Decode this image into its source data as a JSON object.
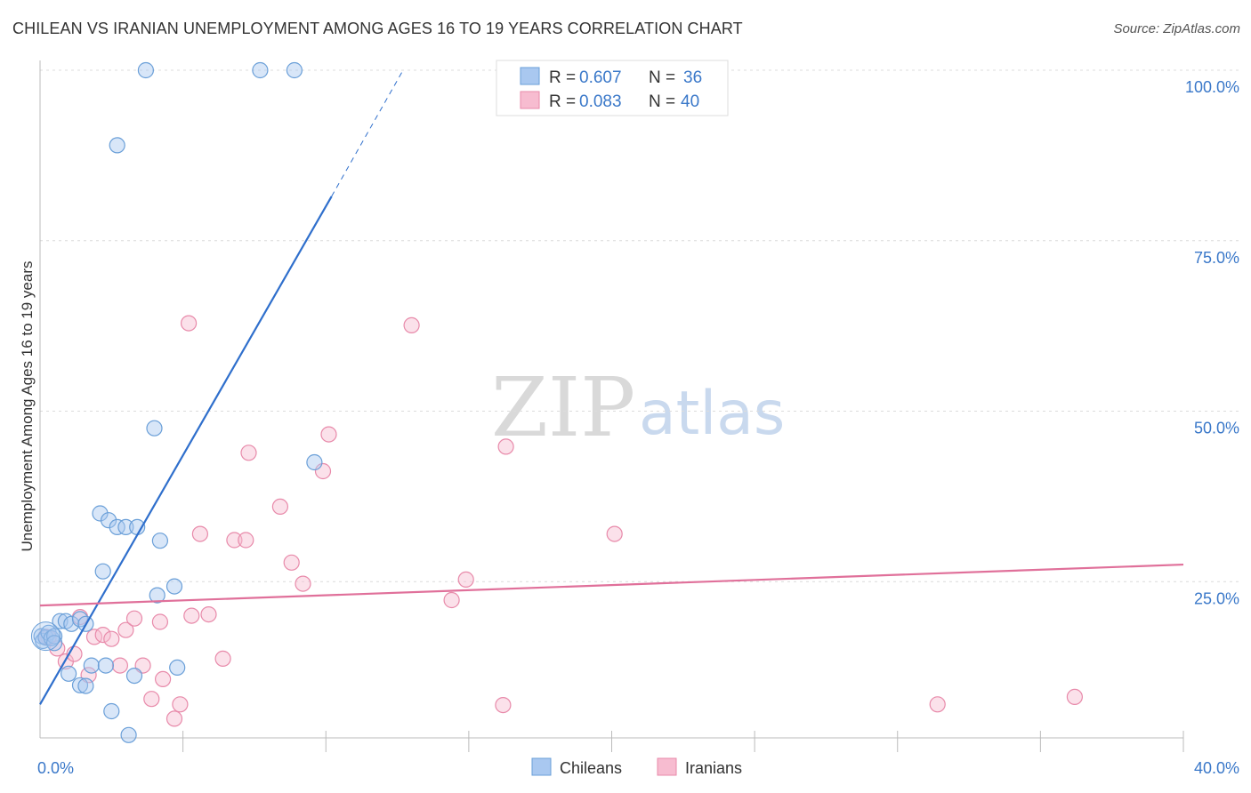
{
  "header": {
    "title": "CHILEAN VS IRANIAN UNEMPLOYMENT AMONG AGES 16 TO 19 YEARS CORRELATION CHART",
    "source": "Source: ZipAtlas.com"
  },
  "watermark": {
    "zip": "ZIP",
    "atlas": "atlas"
  },
  "colors": {
    "chileans_fill": "#a9c8f0",
    "chileans_stroke": "#6a9fd8",
    "chileans_line": "#2f6fcc",
    "iranians_fill": "#f7bcd0",
    "iranians_stroke": "#e88aaa",
    "iranians_line": "#e0709a",
    "tick_text": "#3a78c9"
  },
  "legend_top": {
    "rows": [
      {
        "r_label": "R = ",
        "r_value": "0.607",
        "n_label": "N = ",
        "n_value": "36"
      },
      {
        "r_label": "R = ",
        "r_value": "0.083",
        "n_label": "N = ",
        "n_value": "40"
      }
    ]
  },
  "legend_bottom": {
    "chileans": "Chileans",
    "iranians": "Iranians"
  },
  "chart_data": {
    "type": "scatter",
    "title": "CHILEAN VS IRANIAN UNEMPLOYMENT AMONG AGES 16 TO 19 YEARS CORRELATION CHART",
    "xlabel": "",
    "ylabel": "Unemployment Among Ages 16 to 19 years",
    "xlim": [
      0,
      40
    ],
    "ylim": [
      0,
      100
    ],
    "x_tick_labels": [
      "0.0%",
      "40.0%"
    ],
    "y_ticks": [
      25,
      50,
      75,
      100
    ],
    "y_tick_labels": [
      "25.0%",
      "50.0%",
      "75.0%",
      "100.0%"
    ],
    "grid": true,
    "series": [
      {
        "name": "Chileans",
        "R": 0.607,
        "N": 36,
        "trend": {
          "x0": 0,
          "y0": 7,
          "x1": 10.2,
          "y1": 81.5,
          "dash_to_x": 12.7,
          "dash_to_y": 100
        },
        "points": [
          [
            0.05,
            17.0
          ],
          [
            0.1,
            16.3
          ],
          [
            0.2,
            16.8
          ],
          [
            0.3,
            17.5
          ],
          [
            0.4,
            16.7
          ],
          [
            0.5,
            17.0
          ],
          [
            0.7,
            19.2
          ],
          [
            0.9,
            19.2
          ],
          [
            1.1,
            18.8
          ],
          [
            1.4,
            19.5
          ],
          [
            1.6,
            18.8
          ],
          [
            1.0,
            11.5
          ],
          [
            1.4,
            9.8
          ],
          [
            1.6,
            9.7
          ],
          [
            1.8,
            12.7
          ],
          [
            2.3,
            12.7
          ],
          [
            2.5,
            6.0
          ],
          [
            2.1,
            35.0
          ],
          [
            2.4,
            34.0
          ],
          [
            2.7,
            33.0
          ],
          [
            3.0,
            33.0
          ],
          [
            3.4,
            33.0
          ],
          [
            2.2,
            26.5
          ],
          [
            3.1,
            2.5
          ],
          [
            3.3,
            11.2
          ],
          [
            4.0,
            47.5
          ],
          [
            4.2,
            31.0
          ],
          [
            4.1,
            23.0
          ],
          [
            4.7,
            24.3
          ],
          [
            4.8,
            12.4
          ],
          [
            9.6,
            42.5
          ],
          [
            3.7,
            100
          ],
          [
            7.7,
            100
          ],
          [
            8.9,
            100
          ],
          [
            2.7,
            89.0
          ],
          [
            0.5,
            16.0
          ]
        ]
      },
      {
        "name": "Iranians",
        "R": 0.083,
        "N": 40,
        "trend": {
          "x0": 0,
          "y0": 21.5,
          "x1": 40,
          "y1": 27.5
        },
        "points": [
          [
            0.3,
            16.8
          ],
          [
            0.6,
            15.2
          ],
          [
            0.9,
            13.3
          ],
          [
            1.2,
            14.4
          ],
          [
            1.4,
            19.8
          ],
          [
            1.7,
            11.3
          ],
          [
            1.9,
            16.9
          ],
          [
            2.2,
            17.2
          ],
          [
            2.5,
            16.6
          ],
          [
            2.8,
            12.7
          ],
          [
            3.0,
            17.9
          ],
          [
            3.3,
            19.6
          ],
          [
            3.6,
            12.7
          ],
          [
            3.9,
            7.8
          ],
          [
            4.2,
            19.1
          ],
          [
            4.3,
            10.7
          ],
          [
            4.7,
            4.9
          ],
          [
            4.9,
            7.0
          ],
          [
            5.3,
            20.0
          ],
          [
            5.6,
            32.0
          ],
          [
            5.9,
            20.2
          ],
          [
            6.4,
            13.7
          ],
          [
            6.8,
            31.1
          ],
          [
            7.2,
            31.1
          ],
          [
            7.3,
            43.9
          ],
          [
            8.4,
            36.0
          ],
          [
            8.8,
            27.8
          ],
          [
            9.2,
            24.7
          ],
          [
            9.9,
            41.2
          ],
          [
            10.1,
            46.6
          ],
          [
            14.4,
            22.3
          ],
          [
            14.9,
            25.3
          ],
          [
            16.2,
            6.9
          ],
          [
            16.3,
            44.8
          ],
          [
            20.1,
            32.0
          ],
          [
            31.4,
            7.0
          ],
          [
            36.2,
            8.1
          ],
          [
            5.2,
            62.9
          ],
          [
            13.0,
            62.6
          ],
          [
            0.2,
            16.9
          ]
        ]
      }
    ]
  }
}
